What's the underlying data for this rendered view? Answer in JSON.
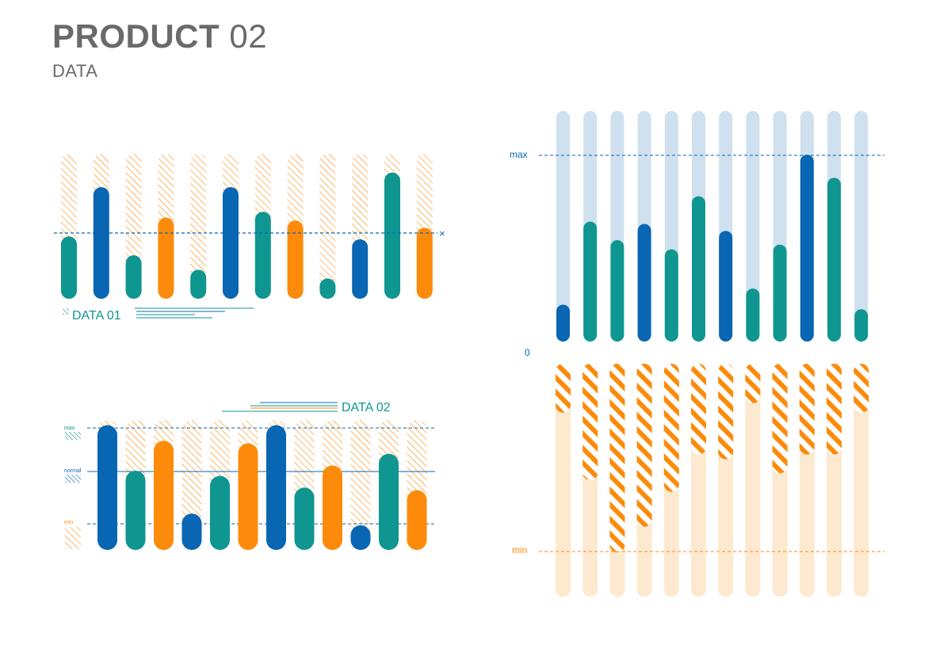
{
  "header": {
    "title_bold": "PRODUCT",
    "title_light": "02",
    "subtitle": "DATA"
  },
  "colors": {
    "blue": "#0866b3",
    "teal": "#0f9690",
    "orange": "#fc8b0b",
    "light_blue": "#cfe0ef",
    "light_orange": "#fde9cf",
    "grey": "#6a6a6c"
  },
  "chart_data": [
    {
      "id": "data01",
      "type": "bar",
      "title": "DATA 01",
      "reference_marker": "×",
      "ylim": [
        0,
        100
      ],
      "reference_value": 45,
      "bars": [
        {
          "value": 43,
          "color": "teal"
        },
        {
          "value": 77,
          "color": "blue"
        },
        {
          "value": 30,
          "color": "teal"
        },
        {
          "value": 56,
          "color": "orange"
        },
        {
          "value": 20,
          "color": "teal"
        },
        {
          "value": 77,
          "color": "blue"
        },
        {
          "value": 60,
          "color": "teal"
        },
        {
          "value": 54,
          "color": "orange"
        },
        {
          "value": 14,
          "color": "teal"
        },
        {
          "value": 41,
          "color": "blue"
        },
        {
          "value": 87,
          "color": "teal"
        },
        {
          "value": 49,
          "color": "orange"
        }
      ]
    },
    {
      "id": "data02",
      "type": "bar",
      "title": "DATA 02",
      "legend": [
        "max",
        "normal",
        "min"
      ],
      "ylim": [
        0,
        100
      ],
      "reference_values": {
        "max": 95,
        "normal": 61,
        "min": 20
      },
      "bars": [
        {
          "value": 96,
          "color": "blue"
        },
        {
          "value": 61,
          "color": "teal"
        },
        {
          "value": 84,
          "color": "orange"
        },
        {
          "value": 28,
          "color": "blue"
        },
        {
          "value": 57,
          "color": "teal"
        },
        {
          "value": 82,
          "color": "orange"
        },
        {
          "value": 96,
          "color": "blue"
        },
        {
          "value": 48,
          "color": "teal"
        },
        {
          "value": 65,
          "color": "orange"
        },
        {
          "value": 19,
          "color": "blue"
        },
        {
          "value": 74,
          "color": "teal"
        },
        {
          "value": 46,
          "color": "orange"
        }
      ]
    },
    {
      "id": "upper-right",
      "type": "bar",
      "axis_labels": {
        "max": "max",
        "zero": "0"
      },
      "ylim": [
        0,
        100
      ],
      "max_value": 81,
      "bars": [
        {
          "value": 16,
          "color": "blue"
        },
        {
          "value": 52,
          "color": "teal"
        },
        {
          "value": 44,
          "color": "teal"
        },
        {
          "value": 51,
          "color": "blue"
        },
        {
          "value": 40,
          "color": "teal"
        },
        {
          "value": 63,
          "color": "teal"
        },
        {
          "value": 48,
          "color": "blue"
        },
        {
          "value": 23,
          "color": "teal"
        },
        {
          "value": 42,
          "color": "teal"
        },
        {
          "value": 81,
          "color": "blue"
        },
        {
          "value": 71,
          "color": "teal"
        },
        {
          "value": 14,
          "color": "teal"
        }
      ]
    },
    {
      "id": "lower-right",
      "type": "bar",
      "orientation": "downward",
      "axis_labels": {
        "min": "min"
      },
      "ylim": [
        0,
        100
      ],
      "min_value": 81,
      "values": [
        21,
        50,
        81,
        70,
        55,
        39,
        41,
        17,
        47,
        39,
        39,
        21
      ]
    }
  ]
}
